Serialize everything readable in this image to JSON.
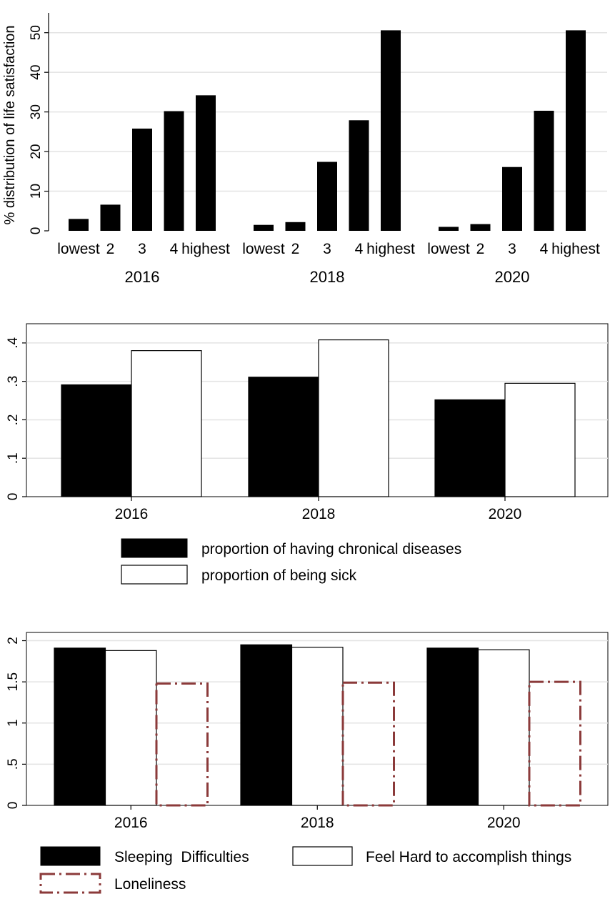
{
  "chart_data": [
    {
      "type": "bar",
      "title": "",
      "ylabel": "% distribution of life satisfaction",
      "ylim": [
        0,
        55
      ],
      "yticks": [
        "0",
        "10",
        "20",
        "30",
        "40",
        "50"
      ],
      "grid": true,
      "groups": [
        {
          "label": "2016",
          "categories": [
            "lowest",
            "2",
            "3",
            "4",
            "highest"
          ],
          "values": [
            3,
            6.6,
            25.8,
            30.2,
            34.2
          ]
        },
        {
          "label": "2018",
          "categories": [
            "lowest",
            "2",
            "3",
            "4",
            "highest"
          ],
          "values": [
            1.5,
            2.2,
            17.4,
            27.9,
            50.6
          ]
        },
        {
          "label": "2020",
          "categories": [
            "lowest",
            "2",
            "3",
            "4",
            "highest"
          ],
          "values": [
            1,
            1.7,
            16.1,
            30.3,
            50.6
          ]
        }
      ]
    },
    {
      "type": "bar",
      "categories": [
        "2016",
        "2018",
        "2020"
      ],
      "ylim": [
        0,
        0.45
      ],
      "yticks": [
        ".4",
        ".3",
        ".2",
        ".1",
        "0"
      ],
      "grid": true,
      "legend_position": "bottom",
      "series": [
        {
          "name": "proportion of having chronical diseases",
          "fill": "#000000",
          "values": [
            0.291,
            0.311,
            0.252
          ]
        },
        {
          "name": "proportion of being sick",
          "fill": "#ffffff",
          "values": [
            0.38,
            0.408,
            0.295
          ]
        }
      ]
    },
    {
      "type": "bar",
      "categories": [
        "2016",
        "2018",
        "2020"
      ],
      "ylim": [
        0,
        2.1
      ],
      "yticks": [
        "2",
        "1.5",
        "1",
        ".5",
        "0"
      ],
      "grid": true,
      "legend_position": "bottom",
      "series": [
        {
          "name": "Sleeping  Difficulties",
          "fill": "#000000",
          "values": [
            1.91,
            1.95,
            1.91
          ]
        },
        {
          "name": "Feel Hard to accomplish things",
          "fill": "#ffffff",
          "values": [
            1.88,
            1.92,
            1.89
          ]
        },
        {
          "name": "Loneliness",
          "fill": "none",
          "stroke": "#8b3a3a",
          "dashed": true,
          "values": [
            1.48,
            1.49,
            1.5
          ]
        }
      ]
    }
  ]
}
